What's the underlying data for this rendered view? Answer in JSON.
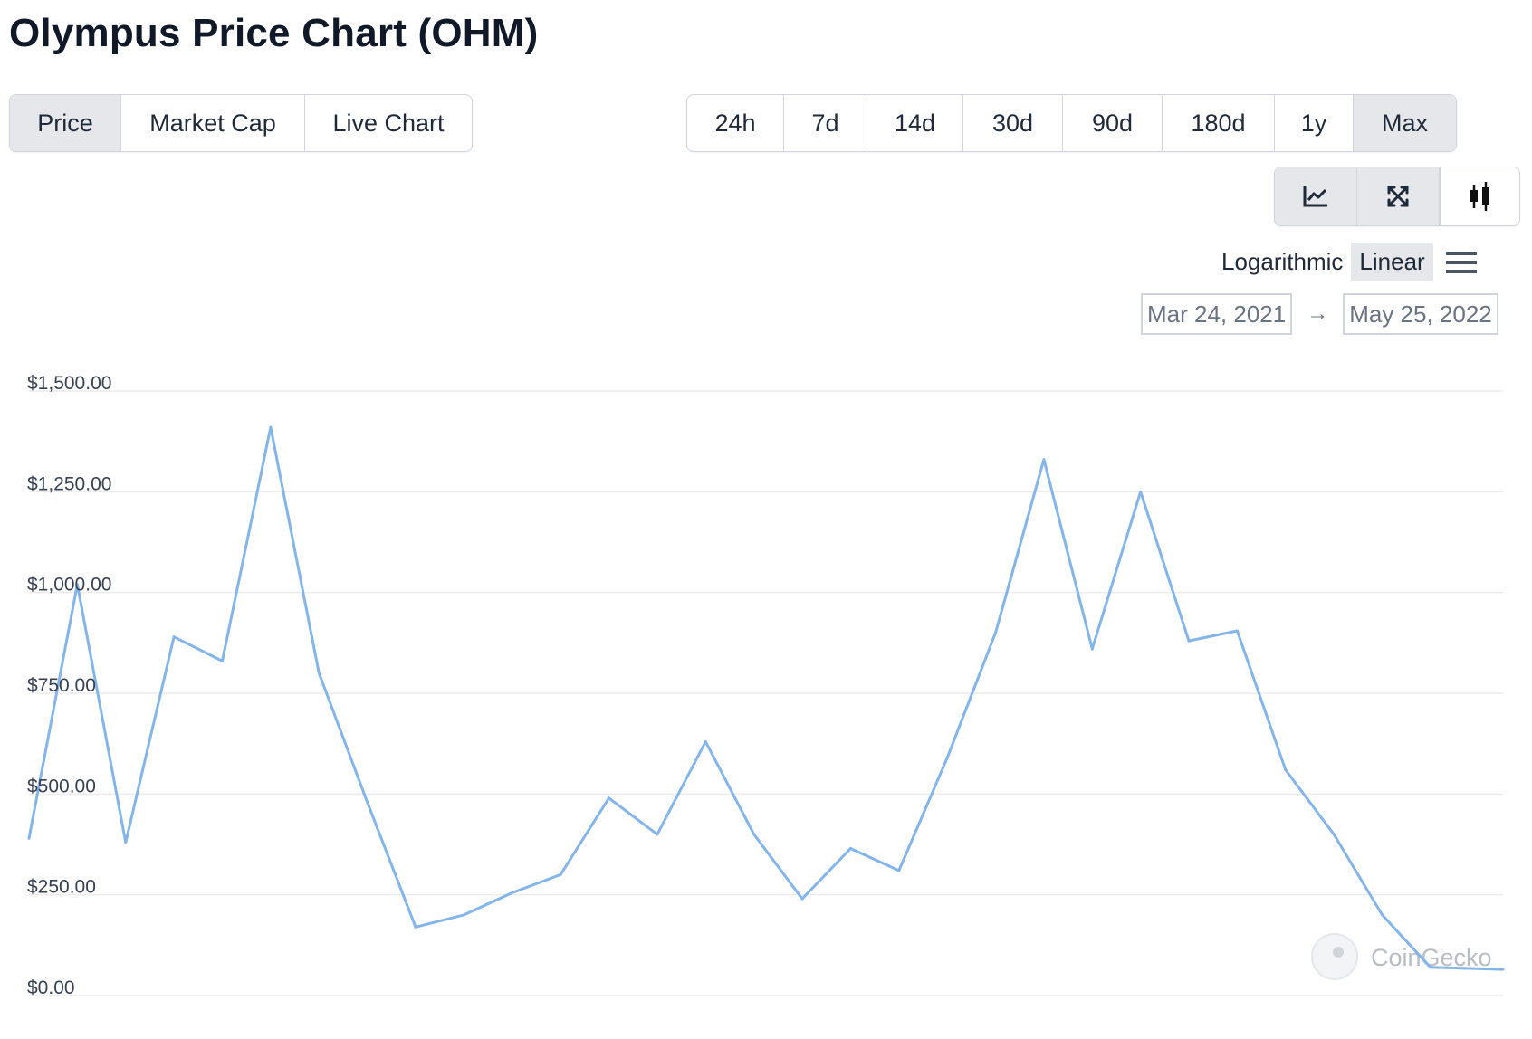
{
  "title": "Olympus Price Chart (OHM)",
  "tabs": [
    {
      "label": "Price",
      "active": true
    },
    {
      "label": "Market Cap",
      "active": false
    },
    {
      "label": "Live Chart",
      "active": false
    }
  ],
  "ranges": [
    {
      "label": "24h",
      "active": false
    },
    {
      "label": "7d",
      "active": false
    },
    {
      "label": "14d",
      "active": false
    },
    {
      "label": "30d",
      "active": false
    },
    {
      "label": "90d",
      "active": false
    },
    {
      "label": "180d",
      "active": false
    },
    {
      "label": "1y",
      "active": false
    },
    {
      "label": "Max",
      "active": true
    }
  ],
  "views": [
    {
      "icon": "line-chart-icon",
      "active": true
    },
    {
      "icon": "expand-icon",
      "active": true
    },
    {
      "icon": "candlestick-icon",
      "active": false
    }
  ],
  "scale": {
    "log_label": "Logarithmic",
    "linear_label": "Linear",
    "active": "Linear",
    "menu_icon": "hamburger-menu-icon"
  },
  "date_range": {
    "from": "Mar 24, 2021",
    "arrow": "→",
    "to": "May 25, 2022"
  },
  "watermark": "CoinGecko",
  "colors": {
    "line": "#85b5e8",
    "grid": "#ececec",
    "active_button": "#e5e7eb",
    "axis_text": "#374151"
  },
  "chart_data": {
    "type": "line",
    "title": "",
    "xlabel": "",
    "ylabel": "",
    "ylim": [
      0,
      1500
    ],
    "yticks": [
      0,
      250,
      500,
      750,
      1000,
      1250,
      1500
    ],
    "ytick_labels": [
      "$0.00",
      "$250.00",
      "$500.00",
      "$750.00",
      "$1,000.00",
      "$1,250.00",
      "$1,500.00"
    ],
    "x": [
      "2021-03-24",
      "2021-04-07",
      "2021-04-21",
      "2021-05-05",
      "2021-05-19",
      "2021-06-02",
      "2021-06-16",
      "2021-06-30",
      "2021-07-14",
      "2021-07-28",
      "2021-08-11",
      "2021-08-25",
      "2021-09-08",
      "2021-09-22",
      "2021-10-06",
      "2021-10-20",
      "2021-11-03",
      "2021-11-17",
      "2021-12-01",
      "2021-12-15",
      "2021-12-29",
      "2022-01-12",
      "2022-01-26",
      "2022-02-09",
      "2022-02-23",
      "2022-03-09",
      "2022-03-23",
      "2022-04-06",
      "2022-04-20",
      "2022-05-04",
      "2022-05-25"
    ],
    "grid": true,
    "legend": "none",
    "series": [
      {
        "values": [
          390,
          1020,
          380,
          890,
          830,
          1410,
          800,
          480,
          170,
          200,
          255,
          300,
          490,
          400,
          630,
          400,
          240,
          365,
          310,
          590,
          900,
          1330,
          860,
          1250,
          880,
          905,
          560,
          400,
          200,
          70,
          65
        ]
      }
    ]
  }
}
